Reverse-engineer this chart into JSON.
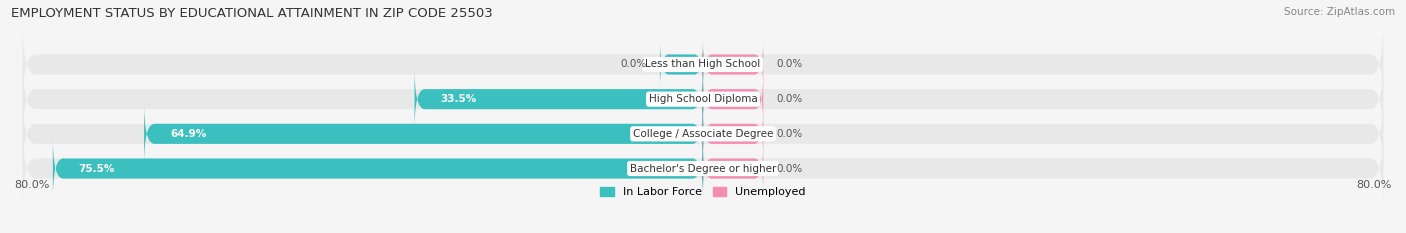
{
  "title": "EMPLOYMENT STATUS BY EDUCATIONAL ATTAINMENT IN ZIP CODE 25503",
  "source": "Source: ZipAtlas.com",
  "categories": [
    "Less than High School",
    "High School Diploma",
    "College / Associate Degree",
    "Bachelor's Degree or higher"
  ],
  "labor_force": [
    0.0,
    33.5,
    64.9,
    75.5
  ],
  "unemployed_pct": [
    0.0,
    0.0,
    0.0,
    0.0
  ],
  "unemployed_visual": 7.0,
  "labor_0_visual": 5.0,
  "xlim_left": -80.0,
  "xlim_right": 80.0,
  "x_left_label": "80.0%",
  "x_right_label": "80.0%",
  "color_labor": "#3bbfbf",
  "color_unemployed": "#f48fb1",
  "color_bg_bar": "#e8e8e8",
  "color_bg_fig": "#f5f5f5",
  "title_fontsize": 9.5,
  "source_fontsize": 7.5,
  "bar_label_fontsize": 7.5,
  "category_fontsize": 7.5,
  "legend_fontsize": 8,
  "axis_fontsize": 8
}
